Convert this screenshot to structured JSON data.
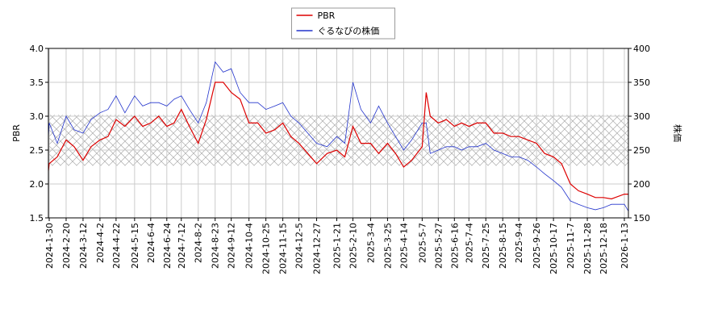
{
  "chart_data": {
    "type": "line",
    "x": [
      "2024-1-29",
      "2024-1-30",
      "2024-2-9",
      "2024-2-20",
      "2024-3-1",
      "2024-3-12",
      "2024-3-22",
      "2024-4-2",
      "2024-4-12",
      "2024-4-22",
      "2024-5-3",
      "2024-5-15",
      "2024-5-25",
      "2024-6-4",
      "2024-6-14",
      "2024-6-24",
      "2024-7-3",
      "2024-7-12",
      "2024-7-22",
      "2024-8-2",
      "2024-8-12",
      "2024-8-23",
      "2024-9-2",
      "2024-9-12",
      "2024-9-23",
      "2024-10-4",
      "2024-10-15",
      "2024-10-25",
      "2024-11-5",
      "2024-11-15",
      "2024-11-25",
      "2024-12-5",
      "2024-12-16",
      "2024-12-27",
      "2025-1-9",
      "2025-1-21",
      "2025-1-31",
      "2025-2-10",
      "2025-2-20",
      "2025-3-4",
      "2025-3-14",
      "2025-3-25",
      "2025-4-4",
      "2025-4-14",
      "2025-4-24",
      "2025-5-7",
      "2025-5-12",
      "2025-5-17",
      "2025-5-27",
      "2025-6-6",
      "2025-6-16",
      "2025-6-25",
      "2025-7-4",
      "2025-7-14",
      "2025-7-25",
      "2025-8-4",
      "2025-8-15",
      "2025-8-25",
      "2025-9-4",
      "2025-9-15",
      "2025-9-26",
      "2025-10-6",
      "2025-10-17",
      "2025-10-27",
      "2025-11-7",
      "2025-11-17",
      "2025-11-28",
      "2025-12-8",
      "2025-12-18",
      "2025-12-28",
      "2026-1-13",
      "2026-1-18"
    ],
    "series": [
      {
        "name": "PBR",
        "color": "#dd0000",
        "values": [
          2.2,
          2.3,
          2.4,
          2.65,
          2.55,
          2.35,
          2.55,
          2.65,
          2.7,
          2.95,
          2.85,
          3.0,
          2.85,
          2.9,
          3.0,
          2.85,
          2.9,
          3.1,
          2.85,
          2.6,
          2.95,
          3.5,
          3.5,
          3.35,
          3.25,
          2.9,
          2.9,
          2.75,
          2.8,
          2.9,
          2.7,
          2.6,
          2.45,
          2.3,
          2.45,
          2.5,
          2.4,
          2.85,
          2.6,
          2.6,
          2.45,
          2.6,
          2.45,
          2.25,
          2.35,
          2.55,
          3.35,
          3.0,
          2.9,
          2.95,
          2.85,
          2.9,
          2.85,
          2.9,
          2.9,
          2.75,
          2.75,
          2.7,
          2.7,
          2.65,
          2.6,
          2.45,
          2.4,
          2.3,
          2.0,
          1.9,
          1.85,
          1.8,
          1.8,
          1.78,
          1.85,
          1.85
        ]
      },
      {
        "name": "ぐるなびの株価",
        "color": "#2233cc",
        "axis": "y2",
        "values": [
          270,
          290,
          260,
          300,
          280,
          275,
          295,
          305,
          310,
          330,
          305,
          330,
          315,
          320,
          320,
          315,
          325,
          330,
          310,
          290,
          320,
          380,
          365,
          370,
          335,
          320,
          320,
          310,
          315,
          320,
          300,
          290,
          275,
          260,
          255,
          270,
          260,
          350,
          310,
          290,
          315,
          290,
          270,
          250,
          265,
          290,
          290,
          245,
          250,
          255,
          255,
          250,
          255,
          255,
          260,
          250,
          245,
          240,
          240,
          235,
          225,
          215,
          205,
          195,
          175,
          170,
          165,
          162,
          165,
          170,
          170,
          160
        ]
      }
    ],
    "xlim": [
      "2024-1-29",
      "2026-1-18"
    ],
    "xticks": [
      "2024-1-30",
      "2024-2-20",
      "2024-3-12",
      "2024-4-2",
      "2024-4-22",
      "2024-5-15",
      "2024-6-4",
      "2024-6-24",
      "2024-7-12",
      "2024-8-2",
      "2024-8-23",
      "2024-9-12",
      "2024-10-4",
      "2024-10-25",
      "2024-11-15",
      "2024-12-5",
      "2024-12-27",
      "2025-1-21",
      "2025-2-10",
      "2025-3-4",
      "2025-3-25",
      "2025-4-14",
      "2025-5-7",
      "2025-5-27",
      "2025-6-16",
      "2025-7-4",
      "2025-7-25",
      "2025-8-15",
      "2025-9-4",
      "2025-9-26",
      "2025-10-17",
      "2025-11-7",
      "2025-11-28",
      "2025-12-18",
      "2026-1-13"
    ],
    "ylabel": "PBR",
    "ylim": [
      1.5,
      4.0
    ],
    "yticks": [
      1.5,
      {
        "value": 2,
        "label": "2.0"
      },
      2.5,
      {
        "value": 3,
        "label": "3.0"
      },
      3.5,
      {
        "value": 4,
        "label": "4.0"
      }
    ],
    "y2label": "株価",
    "y2lim": [
      150,
      400
    ],
    "y2ticks": [
      150,
      200,
      250,
      300,
      350,
      400
    ],
    "shaded_range": [
      2.27,
      3.02
    ],
    "grid": true,
    "legend": "upper center"
  }
}
